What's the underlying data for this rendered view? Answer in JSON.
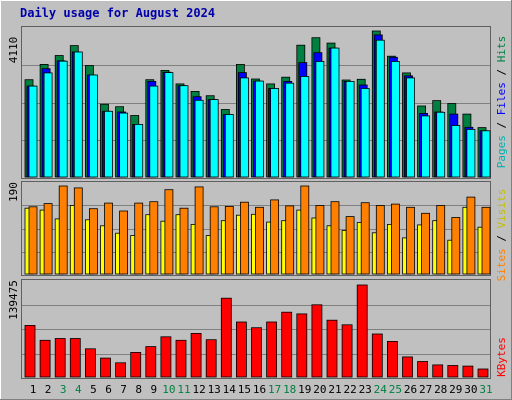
{
  "chart_data": [
    {
      "type": "bar",
      "panel": "top",
      "title": "Daily usage for August 2024",
      "categories": [
        "1",
        "2",
        "3",
        "4",
        "5",
        "6",
        "7",
        "8",
        "9",
        "10",
        "11",
        "12",
        "13",
        "14",
        "15",
        "16",
        "17",
        "18",
        "19",
        "20",
        "21",
        "22",
        "23",
        "24",
        "25",
        "26",
        "27",
        "28",
        "29",
        "30",
        "31"
      ],
      "weekend_days": [
        "3",
        "4",
        "10",
        "11",
        "17",
        "18",
        "24",
        "25",
        "31"
      ],
      "ymax_label": "4110",
      "ylim": [
        0,
        4110
      ],
      "series": [
        {
          "name": "Hits",
          "color": "#008040",
          "values": [
            2740,
            3170,
            3420,
            3700,
            3140,
            2050,
            1980,
            1730,
            2740,
            3000,
            2620,
            2410,
            2290,
            1900,
            3170,
            2760,
            2620,
            2810,
            3710,
            3920,
            3770,
            2730,
            2750,
            4110,
            3400,
            2930,
            2000,
            2150,
            2070,
            1770,
            1390
          ]
        },
        {
          "name": "Files",
          "color": "#0000ff",
          "values": [
            2560,
            3050,
            3270,
            3520,
            2870,
            1850,
            1830,
            1480,
            2690,
            2950,
            2570,
            2260,
            2180,
            1760,
            2940,
            2700,
            2490,
            2690,
            3220,
            3500,
            3630,
            2690,
            2590,
            4000,
            3370,
            2850,
            1790,
            1830,
            1770,
            1400,
            1300
          ]
        },
        {
          "name": "Pages",
          "color": "#00ffff",
          "values": [
            2560,
            2930,
            3260,
            3520,
            2870,
            1850,
            1800,
            1480,
            2560,
            2940,
            2570,
            2160,
            2180,
            1760,
            2790,
            2700,
            2490,
            2640,
            2830,
            3250,
            3630,
            2690,
            2490,
            3850,
            3250,
            2790,
            1720,
            1820,
            1450,
            1340,
            1300
          ]
        }
      ]
    },
    {
      "type": "bar",
      "panel": "middle",
      "categories": [
        "1",
        "2",
        "3",
        "4",
        "5",
        "6",
        "7",
        "8",
        "9",
        "10",
        "11",
        "12",
        "13",
        "14",
        "15",
        "16",
        "17",
        "18",
        "19",
        "20",
        "21",
        "22",
        "23",
        "24",
        "25",
        "26",
        "27",
        "28",
        "29",
        "30",
        "31"
      ],
      "ymax_label": "190",
      "ylim": [
        0,
        190
      ],
      "series": [
        {
          "name": "Visits",
          "color": "#ffff00",
          "values": [
            142,
            138,
            119,
            148,
            117,
            104,
            88,
            83,
            128,
            114,
            128,
            107,
            83,
            115,
            127,
            129,
            112,
            115,
            138,
            121,
            104,
            94,
            111,
            89,
            107,
            78,
            106,
            115,
            73,
            144,
            101
          ]
        },
        {
          "name": "Sites",
          "color": "#ff8000",
          "values": [
            145,
            152,
            190,
            186,
            141,
            153,
            136,
            153,
            156,
            182,
            142,
            188,
            145,
            146,
            155,
            144,
            160,
            147,
            190,
            148,
            156,
            124,
            154,
            148,
            151,
            144,
            131,
            148,
            122,
            166,
            144
          ]
        }
      ]
    },
    {
      "type": "bar",
      "panel": "bottom",
      "categories": [
        "1",
        "2",
        "3",
        "4",
        "5",
        "6",
        "7",
        "8",
        "9",
        "10",
        "11",
        "12",
        "13",
        "14",
        "15",
        "16",
        "17",
        "18",
        "19",
        "20",
        "21",
        "22",
        "23",
        "24",
        "25",
        "26",
        "27",
        "28",
        "29",
        "30",
        "31"
      ],
      "ymax_label": "139475",
      "ylim": [
        0,
        139475
      ],
      "series": [
        {
          "name": "KBytes",
          "color": "#ff0000",
          "values": [
            78300,
            55700,
            58300,
            58300,
            42700,
            28700,
            21600,
            37300,
            46100,
            60900,
            55700,
            66100,
            56500,
            119400,
            83400,
            74800,
            83400,
            98200,
            95600,
            109500,
            86100,
            79100,
            139475,
            65200,
            53900,
            30500,
            23500,
            18300,
            17400,
            16500,
            12200
          ]
        }
      ]
    }
  ]
}
